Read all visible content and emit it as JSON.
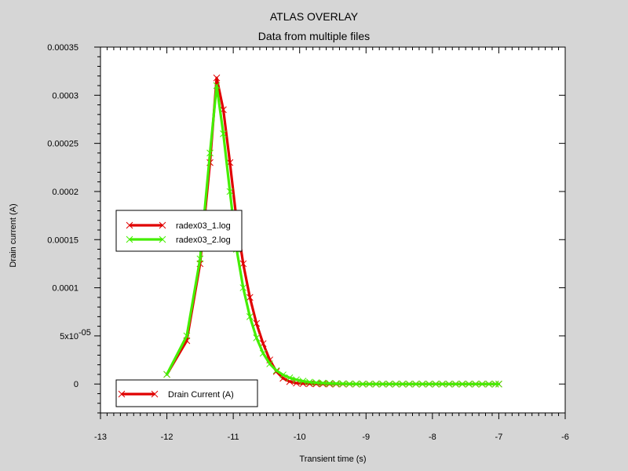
{
  "chart_data": {
    "type": "line",
    "title": "ATLAS OVERLAY",
    "subtitle": "Data from multiple files",
    "xlabel": "Transient time (s)",
    "ylabel": "Drain current (A)",
    "xlim": [
      -13,
      -6
    ],
    "ylim": [
      -3e-05,
      0.00035
    ],
    "x_ticks": [
      {
        "value": -13,
        "label": "-13"
      },
      {
        "value": -12,
        "label": "-12"
      },
      {
        "value": -11,
        "label": "-11"
      },
      {
        "value": -10,
        "label": "-10"
      },
      {
        "value": -9,
        "label": "-9"
      },
      {
        "value": -8,
        "label": "-8"
      },
      {
        "value": -7,
        "label": "-7"
      },
      {
        "value": -6,
        "label": "-6"
      }
    ],
    "y_ticks": [
      {
        "value": 0.00035,
        "label": "0.00035"
      },
      {
        "value": 0.0003,
        "label": "0.0003"
      },
      {
        "value": 0.00025,
        "label": "0.00025"
      },
      {
        "value": 0.0002,
        "label": "0.0002"
      },
      {
        "value": 0.00015,
        "label": "0.00015"
      },
      {
        "value": 0.0001,
        "label": "0.0001"
      },
      {
        "value": 5e-05,
        "label": "5x10",
        "exponent": "-05"
      },
      {
        "value": 0,
        "label": "0"
      }
    ],
    "legend_files": {
      "placement": "middle-left",
      "entries": [
        "radex03_1.log",
        "radex03_2.log"
      ]
    },
    "legend_quantity": {
      "placement": "bottom-left",
      "entries": [
        "Drain Current (A)"
      ]
    },
    "series": [
      {
        "name": "radex03_1.log",
        "color": "#e00000",
        "marker": "x",
        "x": [
          -12,
          -11.7,
          -11.5,
          -11.35,
          -11.25,
          -11.15,
          -11.05,
          -10.95,
          -10.85,
          -10.75,
          -10.65,
          -10.55,
          -10.45,
          -10.35,
          -10.25,
          -10.15,
          -10.05,
          -9.95,
          -9.85,
          -9.75,
          -9.65,
          -9.55,
          -9.45,
          -9.35,
          -9.25,
          -9.15,
          -9.05,
          -8.95,
          -8.85,
          -8.75,
          -8.65,
          -8.55,
          -8.45,
          -8.35,
          -8.25,
          -8.15,
          -8.05,
          -7.95,
          -7.85,
          -7.75,
          -7.65,
          -7.55,
          -7.45,
          -7.35,
          -7.25,
          -7.15,
          -7.05,
          -7
        ],
        "y": [
          1e-05,
          4.5e-05,
          0.000125,
          0.00023,
          0.000318,
          0.000285,
          0.00023,
          0.00017,
          0.000125,
          9e-05,
          6.3e-05,
          4.2e-05,
          2.5e-05,
          1.3e-05,
          6e-06,
          2.5e-06,
          1e-06,
          5e-07,
          3e-07,
          2e-07,
          1e-07,
          0,
          0,
          0,
          0,
          0,
          0,
          0,
          0,
          0,
          0,
          0,
          0,
          0,
          0,
          0,
          0,
          0,
          0,
          0,
          0,
          0,
          0,
          0,
          0,
          0,
          0,
          0
        ]
      },
      {
        "name": "radex03_2.log",
        "color": "#44ee00",
        "marker": "x",
        "x": [
          -12,
          -11.7,
          -11.5,
          -11.35,
          -11.25,
          -11.15,
          -11.05,
          -10.95,
          -10.85,
          -10.75,
          -10.65,
          -10.55,
          -10.45,
          -10.35,
          -10.25,
          -10.15,
          -10.05,
          -9.95,
          -9.85,
          -9.75,
          -9.65,
          -9.55,
          -9.45,
          -9.35,
          -9.25,
          -9.15,
          -9.05,
          -8.95,
          -8.85,
          -8.75,
          -8.65,
          -8.55,
          -8.45,
          -8.35,
          -8.25,
          -8.15,
          -8.05,
          -7.95,
          -7.85,
          -7.75,
          -7.65,
          -7.55,
          -7.45,
          -7.35,
          -7.25,
          -7.15,
          -7.05,
          -7
        ],
        "y": [
          1e-05,
          5e-05,
          0.00013,
          0.00024,
          0.00031,
          0.00026,
          0.0002,
          0.00014,
          0.0001,
          7e-05,
          4.8e-05,
          3.2e-05,
          2.1e-05,
          1.4e-05,
          9.5e-06,
          6.5e-06,
          4.5e-06,
          3e-06,
          2e-06,
          1.4e-06,
          1e-06,
          7e-07,
          5e-07,
          3e-07,
          2e-07,
          1e-07,
          0,
          0,
          0,
          0,
          0,
          0,
          0,
          0,
          0,
          0,
          0,
          0,
          0,
          0,
          0,
          0,
          0,
          0,
          0,
          0,
          0,
          0
        ]
      }
    ]
  }
}
